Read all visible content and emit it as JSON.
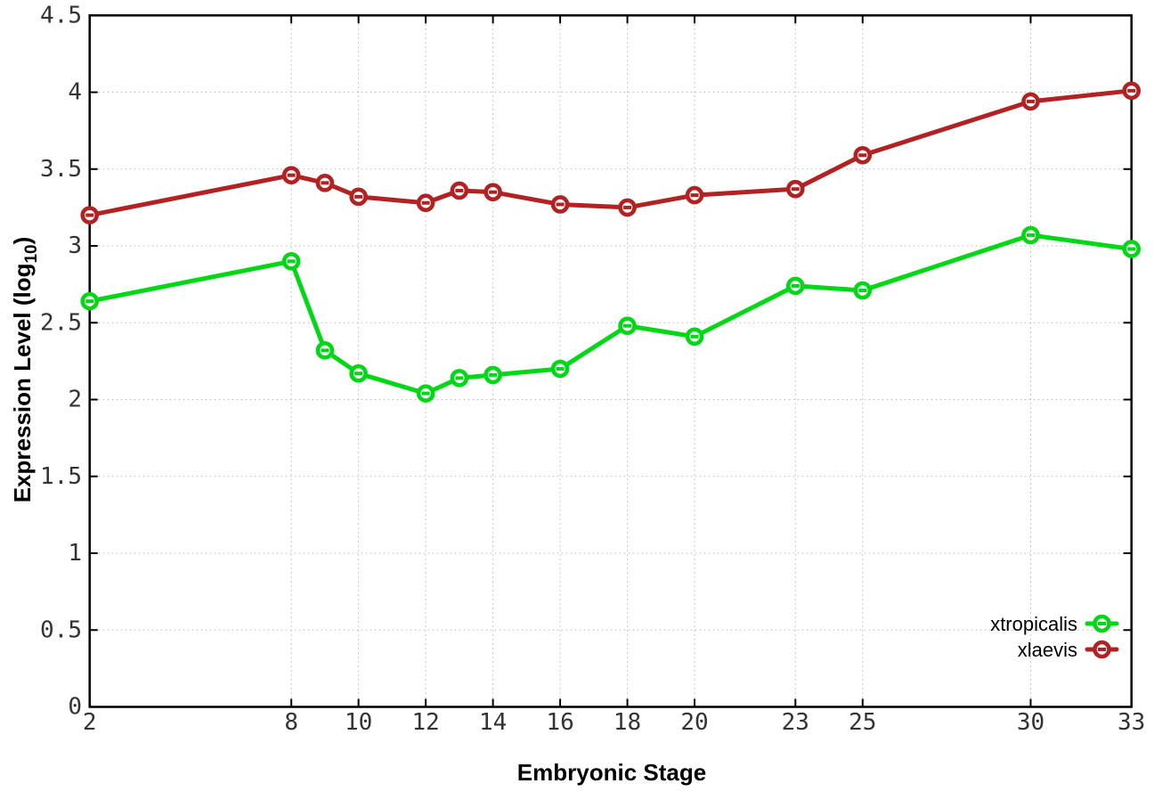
{
  "chart_data": {
    "type": "line",
    "title": "",
    "xlabel": "Embryonic Stage",
    "ylabel": "Expression Level (log10)",
    "ylabel_parts": [
      "Expression Level (log",
      "10",
      ")"
    ],
    "x": [
      2,
      8,
      9,
      10,
      12,
      13,
      14,
      16,
      18,
      20,
      23,
      25,
      30,
      33
    ],
    "series": [
      {
        "name": "xtropicalis",
        "color": "#00D816",
        "values": [
          2.64,
          2.9,
          2.32,
          2.17,
          2.04,
          2.14,
          2.16,
          2.2,
          2.48,
          2.41,
          2.74,
          2.71,
          3.07,
          2.98
        ]
      },
      {
        "name": "xlaevis",
        "color": "#B22222",
        "values": [
          3.2,
          3.46,
          3.41,
          3.32,
          3.28,
          3.36,
          3.35,
          3.27,
          3.25,
          3.33,
          3.37,
          3.59,
          3.94,
          4.01
        ]
      }
    ],
    "xlim": [
      2,
      33
    ],
    "ylim": [
      0,
      4.5
    ],
    "x_ticks": [
      2,
      8,
      10,
      12,
      14,
      16,
      18,
      20,
      23,
      25,
      30,
      33
    ],
    "x_tick_labels": [
      "2",
      "8",
      "10",
      "12",
      "14",
      "16",
      "18",
      "20",
      "23",
      "25",
      "30",
      "33"
    ],
    "y_ticks": [
      0,
      0.5,
      1,
      1.5,
      2,
      2.5,
      3,
      3.5,
      4,
      4.5
    ],
    "y_tick_labels": [
      "0",
      "0.5",
      "1",
      "1.5",
      "2",
      "2.5",
      "3",
      "3.5",
      "4",
      "4.5"
    ],
    "grid": true,
    "grid_style": "dotted",
    "grid_color": "#b8b8b8",
    "frame_color": "#000000",
    "background_color": "#ffffff",
    "legend_position": "bottom-right",
    "marker": "open-circle-horizontal-dash",
    "line_width": 5
  }
}
